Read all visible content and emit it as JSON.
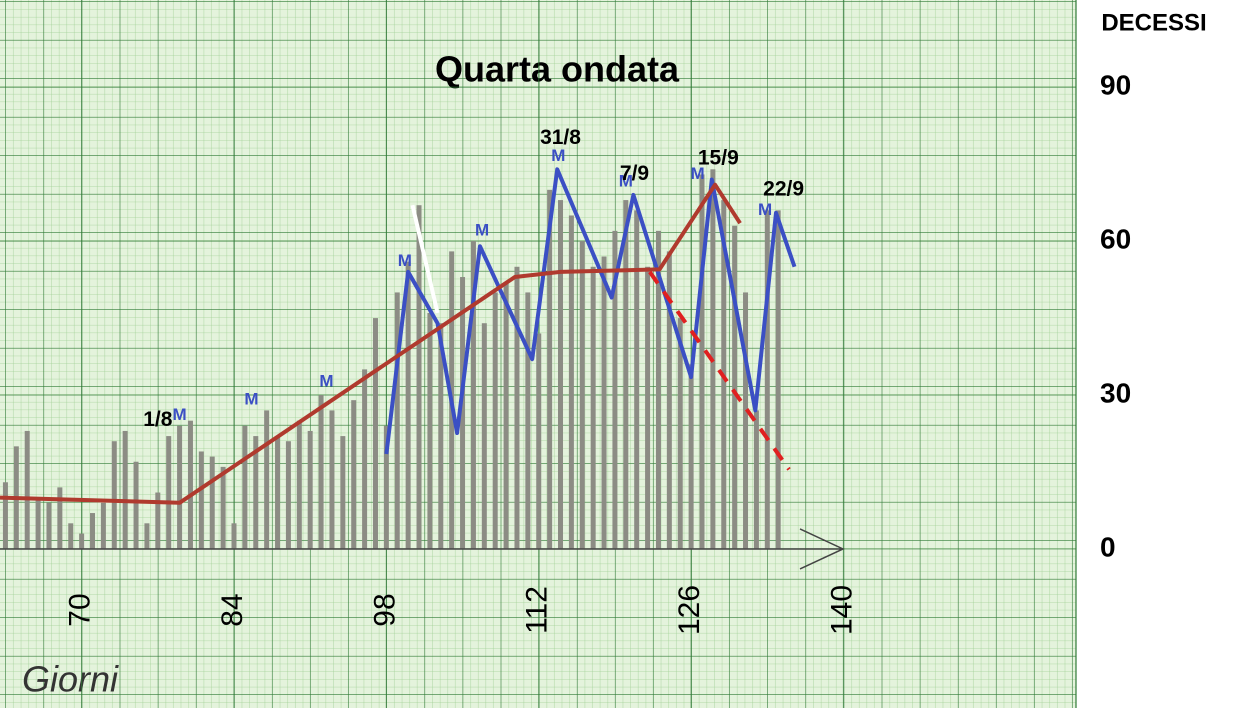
{
  "chart_data": {
    "type": "combo",
    "title": "Quarta ondata",
    "y_label": "DECESSI",
    "x_label": "Giorni",
    "xlim": [
      62.5,
      176.8
    ],
    "ylim": [
      -31,
      107
    ],
    "xticks": [
      70,
      84,
      98,
      112,
      126,
      140
    ],
    "yticks": [
      0,
      30,
      60,
      90
    ],
    "grid": true,
    "bar_color": "#8c8c84",
    "x": [
      63,
      64,
      65,
      66,
      67,
      68,
      69,
      70,
      71,
      72,
      73,
      74,
      75,
      76,
      77,
      78,
      79,
      80,
      81,
      82,
      83,
      84,
      85,
      86,
      87,
      88,
      89,
      90,
      91,
      92,
      93,
      94,
      95,
      96,
      97,
      98,
      99,
      100,
      101,
      102,
      103,
      104,
      105,
      106,
      107,
      108,
      109,
      110,
      111,
      112,
      113,
      114,
      115,
      116,
      117,
      118,
      119,
      120,
      121,
      122,
      123,
      124,
      125,
      126,
      127,
      128,
      129,
      130,
      131,
      132,
      133,
      134
    ],
    "values": [
      13,
      20,
      23,
      10,
      9,
      12,
      5,
      3,
      7,
      9,
      21,
      23,
      17,
      5,
      11,
      22,
      24,
      25,
      19,
      18,
      16,
      5,
      24,
      22,
      27,
      22,
      21,
      25,
      23,
      30,
      27,
      22,
      29,
      35,
      45,
      24,
      50,
      56,
      67,
      46,
      44,
      58,
      53,
      60,
      44,
      50,
      52,
      55,
      50,
      42,
      70,
      68,
      65,
      60,
      55,
      57,
      62,
      68,
      66,
      55,
      62,
      58,
      45,
      36,
      73,
      74,
      68,
      63,
      50,
      27,
      66,
      66
    ],
    "lines": [
      {
        "color": "#3b4fc4",
        "dash": false,
        "x": [
          98,
          100,
          102.7,
          104.5,
          106.6,
          111.4,
          113.7,
          118.7,
          120.7,
          126,
          127.9,
          131.9,
          133.8,
          135.5
        ],
        "values": [
          18.5,
          54,
          44,
          22.6,
          59,
          37,
          74,
          49,
          69,
          33.5,
          72,
          27,
          65.5,
          55
        ]
      },
      {
        "color": "#ffffff",
        "dash": false,
        "x": [
          100.4,
          102.7
        ],
        "values": [
          67,
          46
        ]
      },
      {
        "color": "#b03a2e",
        "dash": false,
        "x": [
          62.5,
          79,
          109.8,
          114,
          123.1,
          128.2,
          130.5
        ],
        "values": [
          10,
          9,
          53,
          54,
          54.5,
          71,
          63.5
        ]
      },
      {
        "color": "#e02020",
        "dash": true,
        "x": [
          122.2,
          135
        ],
        "values": [
          54,
          15.5
        ]
      }
    ],
    "markers": [
      {
        "label": "M",
        "x": 79,
        "y": 26
      },
      {
        "label": "M",
        "x": 85.6,
        "y": 29
      },
      {
        "label": "M",
        "x": 92.5,
        "y": 32.5
      },
      {
        "label": "M",
        "x": 99.7,
        "y": 56
      },
      {
        "label": "M",
        "x": 106.8,
        "y": 62
      },
      {
        "label": "M",
        "x": 113.8,
        "y": 76.5
      },
      {
        "label": "M",
        "x": 120,
        "y": 71.5
      },
      {
        "label": "M",
        "x": 126.6,
        "y": 73
      },
      {
        "label": "M",
        "x": 132.8,
        "y": 66
      }
    ],
    "annotations": [
      {
        "text": "1/8",
        "x": 77,
        "y": 25
      },
      {
        "text": "31/8",
        "x": 114,
        "y": 80
      },
      {
        "text": "7/9",
        "x": 120.8,
        "y": 73
      },
      {
        "text": "15/9",
        "x": 128.5,
        "y": 76
      },
      {
        "text": "22/9",
        "x": 134.5,
        "y": 70
      }
    ]
  }
}
